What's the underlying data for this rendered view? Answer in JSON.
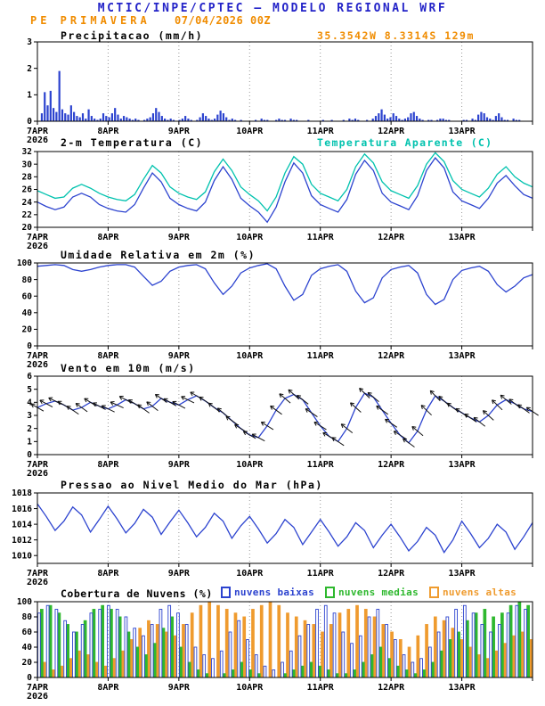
{
  "page": {
    "title": "MCTIC/INPE/CPTEC — MODELO REGIONAL WRF",
    "station": "PE PRIMAVERA",
    "run": "07/04/2026 00Z",
    "location": "35.3542W 8.3314S 129m"
  },
  "colors": {
    "title_blue": "#2323c8",
    "orange": "#f08c00",
    "line_blue": "#2c43cf",
    "cyan": "#00c2ae",
    "green": "#2eb82e",
    "cloud_orange": "#ef9b2e",
    "axis": "#000000",
    "barb_black": "#111111",
    "gridline": "#999999"
  },
  "xaxis": {
    "labels": [
      "7APR",
      "8APR",
      "9APR",
      "10APR",
      "11APR",
      "12APR",
      "13APR"
    ],
    "year_label": "2026",
    "total_hours": 168
  },
  "chart_data": [
    {
      "key": "precipitacao",
      "type": "bar",
      "title": "Precipitacao (mm/h)",
      "ylim": [
        0,
        3
      ],
      "yticks": [
        0,
        1,
        2,
        3
      ],
      "step_hours": 1,
      "series": [
        {
          "name": "precipitacao",
          "color": "line_blue",
          "values": [
            0,
            0.3,
            1.1,
            0.6,
            1.15,
            0.5,
            0.35,
            1.9,
            0.45,
            0.3,
            0.25,
            0.6,
            0.35,
            0.2,
            0.15,
            0.3,
            0.1,
            0.45,
            0.2,
            0.1,
            0.05,
            0.1,
            0.3,
            0.2,
            0.15,
            0.3,
            0.5,
            0.25,
            0.1,
            0.2,
            0.15,
            0.1,
            0.05,
            0.1,
            0.05,
            0,
            0.05,
            0.1,
            0.15,
            0.3,
            0.5,
            0.35,
            0.2,
            0.1,
            0.05,
            0.1,
            0.05,
            0,
            0.05,
            0.1,
            0.2,
            0.1,
            0.05,
            0,
            0.05,
            0.15,
            0.3,
            0.2,
            0.1,
            0.05,
            0.1,
            0.25,
            0.4,
            0.3,
            0.15,
            0.05,
            0.1,
            0.05,
            0,
            0.05,
            0,
            0,
            0,
            0,
            0.05,
            0,
            0.1,
            0.05,
            0.05,
            0,
            0,
            0.05,
            0.1,
            0.05,
            0.05,
            0,
            0.1,
            0.05,
            0.05,
            0,
            0,
            0,
            0.05,
            0,
            0,
            0,
            0,
            0.05,
            0,
            0,
            0.05,
            0,
            0,
            0,
            0.05,
            0,
            0.1,
            0.05,
            0.1,
            0.05,
            0,
            0,
            0.05,
            0,
            0.1,
            0.2,
            0.3,
            0.45,
            0.25,
            0.1,
            0.15,
            0.3,
            0.2,
            0.1,
            0.05,
            0.1,
            0.15,
            0.3,
            0.35,
            0.2,
            0.1,
            0.05,
            0,
            0.05,
            0.05,
            0,
            0.05,
            0.1,
            0.1,
            0.05,
            0.05,
            0,
            0,
            0,
            0,
            0.05,
            0.05,
            0,
            0.1,
            0.05,
            0.25,
            0.35,
            0.3,
            0.15,
            0.1,
            0.05,
            0.2,
            0.3,
            0.15,
            0.05,
            0.05,
            0,
            0.1,
            0.05,
            0.05,
            0,
            0,
            0,
            0
          ]
        }
      ]
    },
    {
      "key": "temperatura",
      "type": "line",
      "title": "2-m Temperatura (C)",
      "legend": "Temperatura Aparente (C)",
      "ylim": [
        20,
        32
      ],
      "yticks": [
        20,
        22,
        24,
        26,
        28,
        30,
        32
      ],
      "step_hours": 3,
      "series": [
        {
          "name": "2-m Temperatura (C)",
          "color": "line_blue",
          "values": [
            24.0,
            23.3,
            22.8,
            23.2,
            24.8,
            25.4,
            24.8,
            23.6,
            23.0,
            22.6,
            22.4,
            23.6,
            26.2,
            28.6,
            27.2,
            24.6,
            23.6,
            23.0,
            22.6,
            24.0,
            27.4,
            29.6,
            27.6,
            24.6,
            23.4,
            22.4,
            20.8,
            23.2,
            27.2,
            30.2,
            28.6,
            25.0,
            23.6,
            23.0,
            22.4,
            24.4,
            28.4,
            30.6,
            29.0,
            25.4,
            24.0,
            23.4,
            22.8,
            25.0,
            29.0,
            31.0,
            29.4,
            25.6,
            24.2,
            23.6,
            23.0,
            24.6,
            27.0,
            28.2,
            26.6,
            25.2,
            24.6
          ]
        },
        {
          "name": "Temperatura Aparente (C)",
          "color": "cyan",
          "values": [
            25.8,
            25.2,
            24.6,
            24.8,
            26.2,
            26.8,
            26.2,
            25.4,
            24.8,
            24.4,
            24.2,
            25.2,
            27.6,
            29.8,
            28.6,
            26.4,
            25.4,
            24.8,
            24.4,
            25.6,
            28.8,
            30.8,
            29.0,
            26.4,
            25.2,
            24.2,
            22.6,
            24.8,
            28.6,
            31.2,
            30.0,
            26.8,
            25.4,
            24.8,
            24.2,
            26.0,
            29.6,
            31.6,
            30.2,
            27.2,
            25.8,
            25.2,
            24.6,
            26.6,
            30.0,
            31.8,
            30.4,
            27.4,
            26.0,
            25.4,
            24.8,
            26.2,
            28.4,
            29.6,
            28.0,
            27.0,
            26.4
          ]
        }
      ]
    },
    {
      "key": "umidade",
      "type": "line",
      "title": "Umidade Relativa em 2m (%)",
      "ylim": [
        0,
        100
      ],
      "yticks": [
        0,
        20,
        40,
        60,
        80,
        100
      ],
      "step_hours": 3,
      "series": [
        {
          "name": "umidade relativa",
          "color": "line_blue",
          "values": [
            96,
            97,
            98,
            97,
            92,
            90,
            92,
            95,
            97,
            98,
            98,
            95,
            84,
            73,
            78,
            90,
            95,
            97,
            98,
            93,
            76,
            62,
            72,
            88,
            94,
            97,
            99,
            93,
            72,
            55,
            62,
            85,
            93,
            96,
            98,
            90,
            66,
            52,
            58,
            82,
            92,
            95,
            97,
            88,
            62,
            50,
            56,
            80,
            91,
            94,
            96,
            90,
            74,
            65,
            72,
            82,
            86
          ]
        }
      ]
    },
    {
      "key": "vento",
      "type": "line+barbs",
      "title": "Vento em 10m (m/s)",
      "ylim": [
        0,
        6
      ],
      "yticks": [
        0,
        1,
        2,
        3,
        4,
        5,
        6
      ],
      "step_hours": 3,
      "directions_deg": [
        120,
        118,
        116,
        120,
        124,
        126,
        122,
        118,
        116,
        114,
        118,
        122,
        126,
        128,
        124,
        120,
        118,
        116,
        120,
        124,
        128,
        130,
        126,
        122,
        120,
        118,
        122,
        126,
        130,
        132,
        128,
        124,
        122,
        120,
        124,
        128,
        132,
        134,
        130,
        126,
        124,
        122,
        126,
        130,
        134,
        136,
        132,
        128,
        126,
        124,
        128,
        132,
        134,
        130,
        128,
        126,
        124
      ],
      "series": [
        {
          "name": "velocidade do vento",
          "color": "line_blue",
          "values": [
            3.6,
            3.9,
            4.1,
            3.8,
            3.4,
            3.6,
            4.0,
            3.7,
            3.5,
            3.8,
            4.2,
            3.9,
            3.5,
            3.7,
            4.3,
            4.0,
            3.8,
            4.2,
            4.5,
            4.1,
            3.6,
            3.2,
            2.6,
            2.0,
            1.5,
            1.3,
            2.2,
            3.4,
            4.3,
            4.6,
            4.2,
            3.2,
            2.2,
            1.4,
            1.0,
            2.0,
            3.6,
            4.7,
            4.4,
            3.4,
            2.4,
            1.5,
            0.9,
            1.8,
            3.4,
            4.5,
            4.1,
            3.6,
            3.2,
            2.8,
            2.5,
            3.0,
            3.8,
            4.2,
            3.9,
            3.5,
            3.3
          ]
        }
      ]
    },
    {
      "key": "pressao",
      "type": "line",
      "title": "Pressao ao Nivel Medio do Mar (hPa)",
      "ylim": [
        1009,
        1018
      ],
      "yticks": [
        1010,
        1012,
        1014,
        1016,
        1018
      ],
      "step_hours": 3,
      "series": [
        {
          "name": "pressao nivel do mar",
          "color": "line_blue",
          "values": [
            1016.6,
            1015.0,
            1013.2,
            1014.4,
            1016.2,
            1015.2,
            1013.0,
            1014.6,
            1016.3,
            1014.7,
            1012.9,
            1014.1,
            1015.9,
            1014.9,
            1012.7,
            1014.3,
            1015.8,
            1014.2,
            1012.4,
            1013.6,
            1015.4,
            1014.4,
            1012.2,
            1013.8,
            1015.0,
            1013.4,
            1011.6,
            1012.8,
            1014.6,
            1013.6,
            1011.4,
            1013.0,
            1014.6,
            1013.0,
            1011.2,
            1012.4,
            1014.2,
            1013.2,
            1011.0,
            1012.6,
            1014.0,
            1012.4,
            1010.6,
            1011.8,
            1013.6,
            1012.6,
            1010.4,
            1012.0,
            1014.4,
            1012.8,
            1011.0,
            1012.2,
            1014.0,
            1013.0,
            1010.8,
            1012.4,
            1014.2
          ]
        }
      ]
    },
    {
      "key": "nuvens",
      "type": "grouped-bar",
      "title": "Cobertura de Nuvens (%)",
      "ylim": [
        0,
        100
      ],
      "yticks": [
        0,
        20,
        40,
        60,
        80,
        100
      ],
      "step_hours": 3,
      "series": [
        {
          "name": "nuvens baixas",
          "color": "line_blue",
          "bar_style": "hollow",
          "values": [
            85,
            95,
            90,
            75,
            60,
            70,
            85,
            90,
            95,
            90,
            80,
            65,
            55,
            70,
            90,
            95,
            85,
            70,
            40,
            30,
            25,
            35,
            60,
            75,
            50,
            30,
            15,
            10,
            20,
            35,
            55,
            70,
            90,
            95,
            85,
            60,
            45,
            55,
            80,
            90,
            70,
            50,
            30,
            20,
            25,
            40,
            60,
            80,
            90,
            95,
            85,
            70,
            60,
            70,
            85,
            95,
            90
          ]
        },
        {
          "name": "nuvens medias",
          "color": "green",
          "bar_style": "solid",
          "values": [
            90,
            95,
            85,
            70,
            60,
            75,
            90,
            95,
            90,
            80,
            60,
            40,
            30,
            45,
            65,
            80,
            40,
            20,
            10,
            5,
            0,
            5,
            10,
            20,
            10,
            5,
            0,
            0,
            5,
            10,
            15,
            20,
            15,
            10,
            5,
            5,
            10,
            20,
            30,
            40,
            25,
            15,
            10,
            5,
            10,
            20,
            35,
            50,
            60,
            75,
            85,
            90,
            80,
            85,
            95,
            100,
            95
          ]
        },
        {
          "name": "nuvens altas",
          "color": "cloud_orange",
          "bar_style": "solid",
          "values": [
            20,
            10,
            15,
            25,
            35,
            30,
            20,
            15,
            25,
            35,
            50,
            65,
            75,
            70,
            60,
            55,
            70,
            85,
            95,
            100,
            95,
            90,
            85,
            80,
            90,
            95,
            100,
            95,
            85,
            80,
            75,
            70,
            60,
            70,
            85,
            90,
            95,
            90,
            80,
            70,
            60,
            50,
            40,
            55,
            70,
            80,
            75,
            65,
            50,
            40,
            30,
            25,
            35,
            45,
            55,
            60,
            50
          ]
        }
      ]
    }
  ]
}
